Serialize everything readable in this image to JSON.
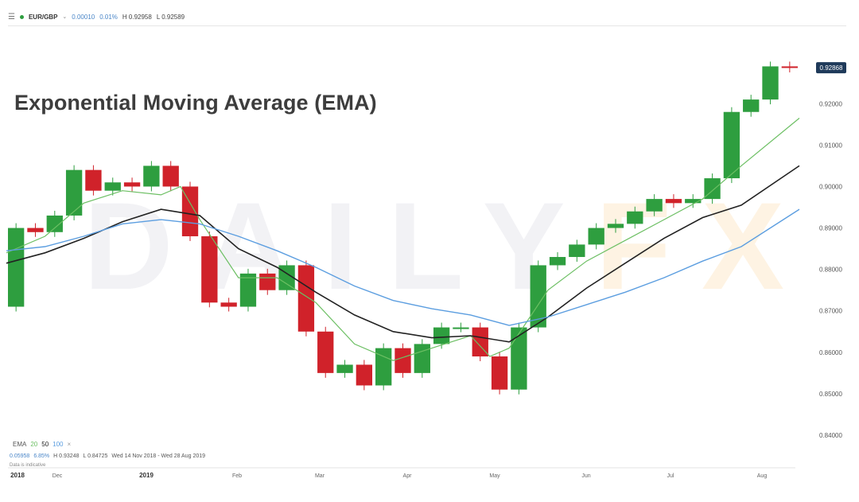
{
  "header": {
    "symbol": "EUR/GBP",
    "change": "0.00010",
    "change_pct": "0.01%",
    "high": "H 0.92958",
    "low": "L 0.92589"
  },
  "title": "Exponential Moving Average (EMA)",
  "watermark": {
    "part1": "DAILY",
    "part2": "FX"
  },
  "price_label": "0.92868",
  "legend": {
    "label": "EMA",
    "ema20": "20",
    "ema50": "50",
    "ema100": "100",
    "close": "×"
  },
  "stats": {
    "change": "0.05958",
    "change_pct": "6.85%",
    "high": "H 0.93248",
    "low": "L 0.84725",
    "range": "Wed 14 Nov 2018 - Wed 28 Aug 2019"
  },
  "note": "Data is indicative",
  "colors": {
    "up": "#2e9e3f",
    "down": "#d0222a",
    "ema20": "#6cbf63",
    "ema50": "#222222",
    "ema100": "#5c9ee0",
    "price_tag": "#1f3a5a"
  },
  "chart_data": {
    "type": "line",
    "title": "Exponential Moving Average (EMA)",
    "instrument": "EUR/GBP",
    "x_ticks": [
      "2018",
      "Dec",
      "2019",
      "Feb",
      "Mar",
      "Apr",
      "May",
      "Jun",
      "Jul",
      "Aug"
    ],
    "y_ticks": [
      "0.84000",
      "0.85000",
      "0.86000",
      "0.87000",
      "0.88000",
      "0.89000",
      "0.90000",
      "0.91000",
      "0.92000"
    ],
    "ylim": [
      0.8375,
      0.9335
    ],
    "x_domain": [
      "2018-11-14",
      "2019-08-28"
    ],
    "grid": false,
    "last_price": 0.92868,
    "series": [
      {
        "name": "EMA 20",
        "points": [
          [
            "2018-11-14",
            0.884
          ],
          [
            "2018-11-28",
            0.888
          ],
          [
            "2018-12-12",
            0.896
          ],
          [
            "2018-12-26",
            0.899
          ],
          [
            "2019-01-09",
            0.898
          ],
          [
            "2019-01-16",
            0.9
          ],
          [
            "2019-01-23",
            0.892
          ],
          [
            "2019-02-06",
            0.878
          ],
          [
            "2019-02-20",
            0.878
          ],
          [
            "2019-03-06",
            0.872
          ],
          [
            "2019-03-20",
            0.862
          ],
          [
            "2019-04-03",
            0.858
          ],
          [
            "2019-04-17",
            0.861
          ],
          [
            "2019-05-01",
            0.864
          ],
          [
            "2019-05-08",
            0.859
          ],
          [
            "2019-05-15",
            0.861
          ],
          [
            "2019-05-29",
            0.875
          ],
          [
            "2019-06-12",
            0.882
          ],
          [
            "2019-06-26",
            0.887
          ],
          [
            "2019-07-10",
            0.892
          ],
          [
            "2019-07-24",
            0.897
          ],
          [
            "2019-08-07",
            0.905
          ],
          [
            "2019-08-28",
            0.9165
          ]
        ]
      },
      {
        "name": "EMA 50",
        "points": [
          [
            "2018-11-14",
            0.8815
          ],
          [
            "2018-11-28",
            0.884
          ],
          [
            "2018-12-12",
            0.8875
          ],
          [
            "2018-12-26",
            0.8915
          ],
          [
            "2019-01-09",
            0.8945
          ],
          [
            "2019-01-23",
            0.893
          ],
          [
            "2019-02-06",
            0.885
          ],
          [
            "2019-02-20",
            0.8805
          ],
          [
            "2019-03-06",
            0.8745
          ],
          [
            "2019-03-20",
            0.869
          ],
          [
            "2019-04-03",
            0.865
          ],
          [
            "2019-04-17",
            0.8635
          ],
          [
            "2019-05-01",
            0.864
          ],
          [
            "2019-05-15",
            0.8625
          ],
          [
            "2019-05-29",
            0.8685
          ],
          [
            "2019-06-12",
            0.8755
          ],
          [
            "2019-06-26",
            0.8815
          ],
          [
            "2019-07-10",
            0.8875
          ],
          [
            "2019-07-24",
            0.8925
          ],
          [
            "2019-08-07",
            0.8955
          ],
          [
            "2019-08-28",
            0.905
          ]
        ]
      },
      {
        "name": "EMA 100",
        "points": [
          [
            "2018-11-14",
            0.8845
          ],
          [
            "2018-11-28",
            0.8855
          ],
          [
            "2018-12-12",
            0.888
          ],
          [
            "2018-12-26",
            0.891
          ],
          [
            "2019-01-09",
            0.892
          ],
          [
            "2019-01-23",
            0.891
          ],
          [
            "2019-02-06",
            0.888
          ],
          [
            "2019-02-20",
            0.8845
          ],
          [
            "2019-03-06",
            0.8805
          ],
          [
            "2019-03-20",
            0.876
          ],
          [
            "2019-04-03",
            0.8725
          ],
          [
            "2019-04-17",
            0.8705
          ],
          [
            "2019-05-01",
            0.869
          ],
          [
            "2019-05-15",
            0.8665
          ],
          [
            "2019-05-29",
            0.8685
          ],
          [
            "2019-06-12",
            0.8715
          ],
          [
            "2019-06-26",
            0.8745
          ],
          [
            "2019-07-10",
            0.878
          ],
          [
            "2019-07-24",
            0.882
          ],
          [
            "2019-08-07",
            0.8855
          ],
          [
            "2019-08-28",
            0.8945
          ]
        ]
      },
      {
        "name": "Price",
        "points": [
          [
            "2018-11-14",
            0.871
          ],
          [
            "2018-11-21",
            0.89
          ],
          [
            "2018-11-28",
            0.889
          ],
          [
            "2018-12-05",
            0.893
          ],
          [
            "2018-12-12",
            0.904
          ],
          [
            "2018-12-19",
            0.899
          ],
          [
            "2018-12-26",
            0.901
          ],
          [
            "2019-01-02",
            0.9
          ],
          [
            "2019-01-09",
            0.905
          ],
          [
            "2019-01-16",
            0.9
          ],
          [
            "2019-01-23",
            0.888
          ],
          [
            "2019-01-30",
            0.872
          ],
          [
            "2019-02-06",
            0.871
          ],
          [
            "2019-02-13",
            0.879
          ],
          [
            "2019-02-20",
            0.875
          ],
          [
            "2019-02-27",
            0.881
          ],
          [
            "2019-03-06",
            0.865
          ],
          [
            "2019-03-13",
            0.855
          ],
          [
            "2019-03-20",
            0.857
          ],
          [
            "2019-03-27",
            0.852
          ],
          [
            "2019-04-03",
            0.861
          ],
          [
            "2019-04-10",
            0.855
          ],
          [
            "2019-04-17",
            0.862
          ],
          [
            "2019-04-24",
            0.866
          ],
          [
            "2019-05-01",
            0.866
          ],
          [
            "2019-05-08",
            0.859
          ],
          [
            "2019-05-15",
            0.851
          ],
          [
            "2019-05-22",
            0.866
          ],
          [
            "2019-05-29",
            0.881
          ],
          [
            "2019-06-05",
            0.883
          ],
          [
            "2019-06-12",
            0.886
          ],
          [
            "2019-06-19",
            0.89
          ],
          [
            "2019-06-26",
            0.891
          ],
          [
            "2019-07-03",
            0.894
          ],
          [
            "2019-07-10",
            0.897
          ],
          [
            "2019-07-17",
            0.896
          ],
          [
            "2019-07-24",
            0.897
          ],
          [
            "2019-07-31",
            0.902
          ],
          [
            "2019-08-07",
            0.918
          ],
          [
            "2019-08-14",
            0.921
          ],
          [
            "2019-08-21",
            0.929
          ],
          [
            "2019-08-28",
            0.9287
          ]
        ]
      }
    ]
  }
}
